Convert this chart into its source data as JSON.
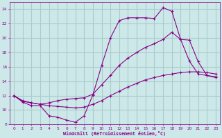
{
  "bg_color": "#cce8e8",
  "line_color": "#880088",
  "grid_color": "#aacccc",
  "xlabel": "Windchill (Refroidissement éolien,°C)",
  "xlim": [
    -0.5,
    23.5
  ],
  "ylim": [
    8,
    25
  ],
  "xticks": [
    0,
    1,
    2,
    3,
    4,
    5,
    6,
    7,
    8,
    9,
    10,
    11,
    12,
    13,
    14,
    15,
    16,
    17,
    18,
    19,
    20,
    21,
    22,
    23
  ],
  "yticks": [
    8,
    10,
    12,
    14,
    16,
    18,
    20,
    22,
    24
  ],
  "curve1_x": [
    0,
    1,
    2,
    3,
    4,
    5,
    6,
    7,
    8,
    9,
    10,
    11,
    12,
    13,
    14,
    15,
    16,
    17,
    18,
    19,
    20,
    21,
    22,
    23
  ],
  "curve1_y": [
    12.0,
    11.1,
    10.6,
    10.6,
    9.2,
    9.0,
    8.6,
    8.3,
    9.2,
    12.1,
    16.2,
    20.0,
    22.4,
    22.8,
    22.8,
    22.8,
    22.7,
    24.2,
    23.7,
    19.8,
    16.8,
    15.0,
    14.8,
    14.6
  ],
  "curve2_x": [
    0,
    1,
    2,
    3,
    4,
    5,
    6,
    7,
    8,
    9,
    10,
    11,
    12,
    13,
    14,
    15,
    16,
    17,
    18,
    19,
    20,
    21,
    22,
    23
  ],
  "curve2_y": [
    12.0,
    11.2,
    11.0,
    10.8,
    11.0,
    11.3,
    11.5,
    11.6,
    11.7,
    12.2,
    13.5,
    14.8,
    16.2,
    17.2,
    18.0,
    18.7,
    19.2,
    19.8,
    20.8,
    19.8,
    19.7,
    16.7,
    14.8,
    14.5
  ],
  "curve3_x": [
    0,
    1,
    2,
    3,
    4,
    5,
    6,
    7,
    8,
    9,
    10,
    11,
    12,
    13,
    14,
    15,
    16,
    17,
    18,
    19,
    20,
    21,
    22,
    23
  ],
  "curve3_y": [
    12.0,
    11.3,
    11.0,
    10.8,
    10.6,
    10.5,
    10.4,
    10.3,
    10.4,
    10.8,
    11.3,
    12.0,
    12.6,
    13.2,
    13.7,
    14.2,
    14.5,
    14.8,
    15.0,
    15.2,
    15.3,
    15.3,
    15.2,
    15.0
  ]
}
